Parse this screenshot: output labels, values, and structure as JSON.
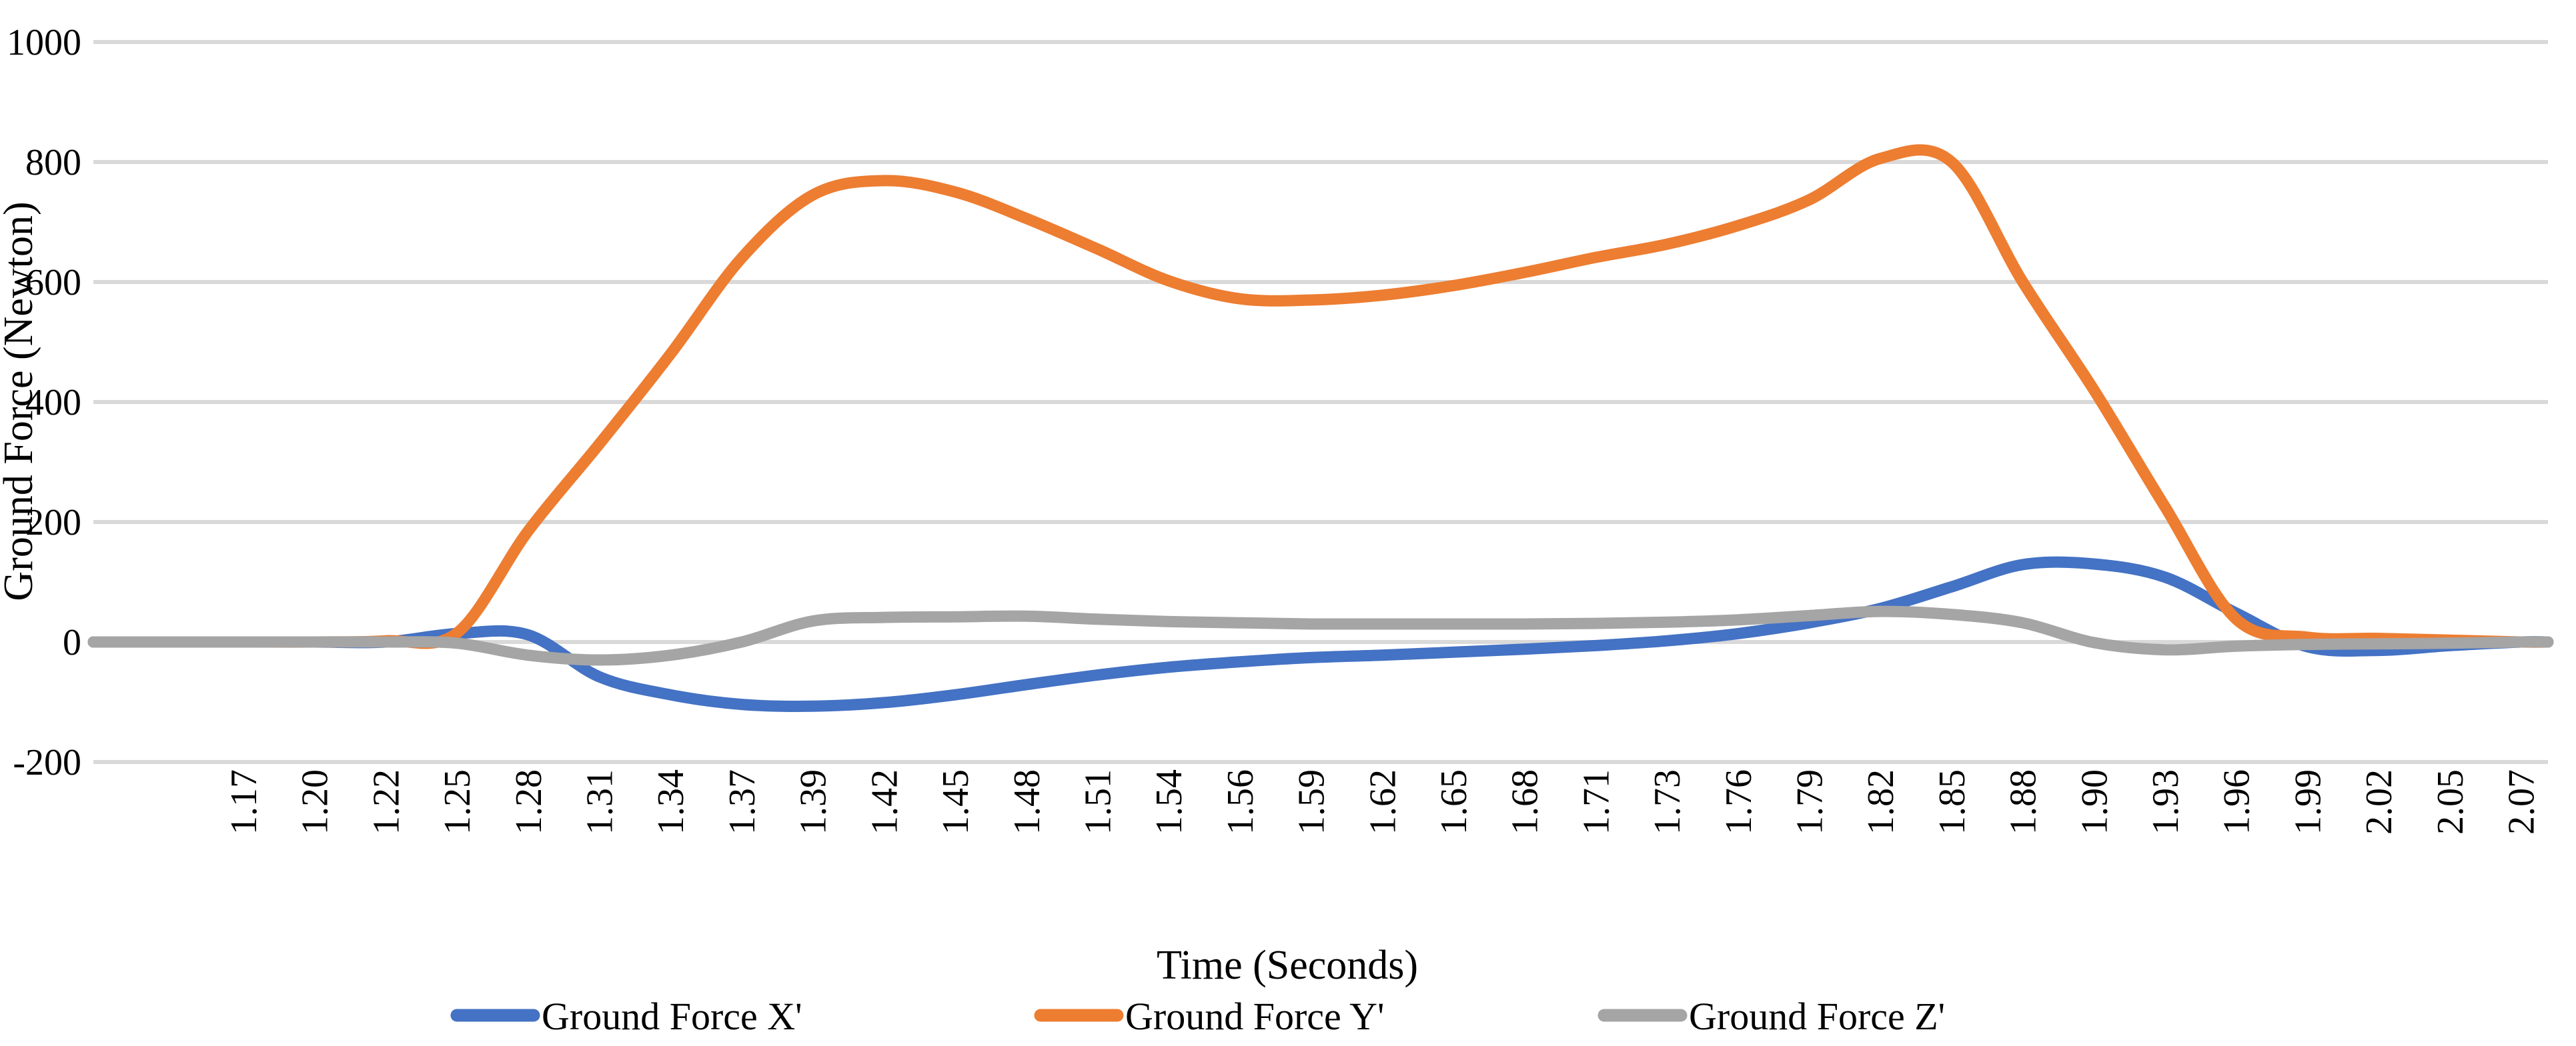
{
  "chart_data": {
    "type": "line",
    "title": "",
    "xlabel": "Time (Seconds)",
    "ylabel": "Ground Force (Newton)",
    "ylim": [
      -200,
      1000
    ],
    "y_ticks": [
      -200,
      0,
      200,
      400,
      600,
      800,
      1000
    ],
    "grid": true,
    "grid_color": "#D9D9D9",
    "legend_position": "bottom",
    "categories": [
      "1.17",
      "1.20",
      "1.22",
      "1.25",
      "1.28",
      "1.31",
      "1.34",
      "1.37",
      "1.39",
      "1.42",
      "1.45",
      "1.48",
      "1.51",
      "1.54",
      "1.56",
      "1.59",
      "1.62",
      "1.65",
      "1.68",
      "1.71",
      "1.73",
      "1.76",
      "1.79",
      "1.82",
      "1.85",
      "1.88",
      "1.90",
      "1.93",
      "1.96",
      "1.99",
      "2.02",
      "2.05",
      "2.07"
    ],
    "series": [
      {
        "name": "Ground Force X'",
        "color": "#4472C4",
        "values": [
          0,
          0,
          0,
          14,
          12,
          -58,
          -88,
          -104,
          -107,
          -101,
          -88,
          -71,
          -55,
          -42,
          -33,
          -26,
          -22,
          -17,
          -12,
          -6,
          2,
          14,
          32,
          56,
          92,
          129,
          130,
          108,
          48,
          -8,
          -14,
          -6,
          0
        ]
      },
      {
        "name": "Ground Force Y'",
        "color": "#ED7D31",
        "values": [
          0,
          0,
          2,
          15,
          185,
          330,
          480,
          640,
          745,
          769,
          750,
          706,
          655,
          602,
          572,
          570,
          578,
          594,
          616,
          641,
          663,
          694,
          737,
          806,
          800,
          600,
          420,
          225,
          38,
          8,
          6,
          3,
          0
        ]
      },
      {
        "name": "Ground Force Z'",
        "color": "#A5A5A5",
        "values": [
          0,
          0,
          0,
          -2,
          -22,
          -30,
          -22,
          0,
          35,
          41,
          42,
          43,
          38,
          34,
          32,
          30,
          30,
          30,
          30,
          31,
          33,
          37,
          44,
          51,
          46,
          32,
          -1,
          -13,
          -7,
          -4,
          -3,
          -2,
          0
        ]
      }
    ]
  }
}
